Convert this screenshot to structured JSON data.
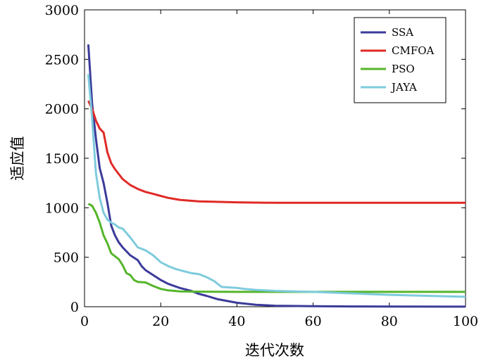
{
  "chart_data": {
    "type": "line",
    "xlabel": "迭代次数",
    "ylabel": "适应值",
    "xlim": [
      0,
      100
    ],
    "ylim": [
      0,
      3000
    ],
    "xticks": [
      0,
      20,
      40,
      60,
      80,
      100
    ],
    "yticks": [
      0,
      500,
      1000,
      1500,
      2000,
      2500,
      3000
    ],
    "grid": false,
    "legend_position": "top-right",
    "series": [
      {
        "name": "SSA",
        "color": "#3b3b9a",
        "points": [
          [
            1,
            2650
          ],
          [
            2,
            2050
          ],
          [
            3,
            1700
          ],
          [
            4,
            1400
          ],
          [
            5,
            1250
          ],
          [
            6,
            1050
          ],
          [
            7,
            820
          ],
          [
            8,
            720
          ],
          [
            9,
            650
          ],
          [
            10,
            600
          ],
          [
            12,
            520
          ],
          [
            14,
            470
          ],
          [
            15,
            410
          ],
          [
            16,
            370
          ],
          [
            18,
            320
          ],
          [
            20,
            270
          ],
          [
            22,
            230
          ],
          [
            25,
            190
          ],
          [
            28,
            160
          ],
          [
            30,
            130
          ],
          [
            32,
            110
          ],
          [
            35,
            75
          ],
          [
            40,
            40
          ],
          [
            45,
            20
          ],
          [
            50,
            10
          ],
          [
            60,
            5
          ],
          [
            70,
            3
          ],
          [
            80,
            2
          ],
          [
            100,
            1
          ]
        ]
      },
      {
        "name": "CMFOA",
        "color": "#e02a26",
        "points": [
          [
            1,
            2080
          ],
          [
            2,
            2000
          ],
          [
            3,
            1880
          ],
          [
            4,
            1800
          ],
          [
            5,
            1760
          ],
          [
            6,
            1560
          ],
          [
            7,
            1450
          ],
          [
            8,
            1390
          ],
          [
            9,
            1340
          ],
          [
            10,
            1290
          ],
          [
            12,
            1230
          ],
          [
            14,
            1190
          ],
          [
            16,
            1160
          ],
          [
            18,
            1140
          ],
          [
            20,
            1120
          ],
          [
            22,
            1100
          ],
          [
            25,
            1080
          ],
          [
            30,
            1065
          ],
          [
            40,
            1055
          ],
          [
            50,
            1050
          ],
          [
            60,
            1050
          ],
          [
            80,
            1050
          ],
          [
            100,
            1050
          ]
        ]
      },
      {
        "name": "PSO",
        "color": "#55b52a",
        "points": [
          [
            1,
            1040
          ],
          [
            2,
            1020
          ],
          [
            3,
            950
          ],
          [
            4,
            850
          ],
          [
            5,
            720
          ],
          [
            6,
            640
          ],
          [
            7,
            540
          ],
          [
            8,
            510
          ],
          [
            9,
            480
          ],
          [
            10,
            420
          ],
          [
            11,
            340
          ],
          [
            12,
            320
          ],
          [
            13,
            270
          ],
          [
            14,
            250
          ],
          [
            16,
            245
          ],
          [
            18,
            210
          ],
          [
            20,
            180
          ],
          [
            22,
            165
          ],
          [
            25,
            155
          ],
          [
            30,
            152
          ],
          [
            40,
            150
          ],
          [
            60,
            150
          ],
          [
            80,
            150
          ],
          [
            100,
            150
          ]
        ]
      },
      {
        "name": "JAYA",
        "color": "#7ecbdc",
        "points": [
          [
            1,
            2350
          ],
          [
            2,
            1900
          ],
          [
            3,
            1350
          ],
          [
            4,
            1100
          ],
          [
            5,
            950
          ],
          [
            6,
            880
          ],
          [
            7,
            850
          ],
          [
            8,
            830
          ],
          [
            9,
            800
          ],
          [
            10,
            790
          ],
          [
            12,
            700
          ],
          [
            14,
            600
          ],
          [
            16,
            570
          ],
          [
            18,
            520
          ],
          [
            20,
            450
          ],
          [
            22,
            410
          ],
          [
            24,
            380
          ],
          [
            26,
            360
          ],
          [
            28,
            340
          ],
          [
            30,
            330
          ],
          [
            32,
            300
          ],
          [
            34,
            260
          ],
          [
            36,
            200
          ],
          [
            40,
            190
          ],
          [
            42,
            180
          ],
          [
            45,
            170
          ],
          [
            50,
            160
          ],
          [
            55,
            155
          ],
          [
            60,
            150
          ],
          [
            70,
            135
          ],
          [
            80,
            120
          ],
          [
            90,
            110
          ],
          [
            100,
            100
          ]
        ]
      }
    ]
  }
}
